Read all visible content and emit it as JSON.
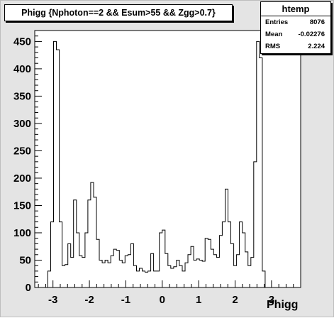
{
  "title": "Phigg {Nphoton==2 && Esum>55 && Zgg>0.7}",
  "stats": {
    "name": "htemp",
    "rows": [
      {
        "label": "Entries",
        "value": "8076"
      },
      {
        "label": "Mean",
        "value": "-0.02276"
      },
      {
        "label": "RMS",
        "value": "2.224"
      }
    ]
  },
  "chart_data": {
    "type": "bar",
    "histogram": true,
    "title": "Phigg {Nphoton==2 && Esum>55 && Zgg>0.7}",
    "xlabel": "Phigg",
    "ylabel": "",
    "xlim": [
      -3.5,
      3.8
    ],
    "ylim": [
      0,
      470
    ],
    "grid": false,
    "bin_width": 0.0785,
    "x_start": -3.141,
    "x_ticks": [
      -3,
      -2,
      -1,
      0,
      1,
      2,
      3
    ],
    "y_ticks": [
      0,
      50,
      100,
      150,
      200,
      250,
      300,
      350,
      400,
      450
    ],
    "values": [
      30,
      120,
      450,
      435,
      120,
      40,
      42,
      80,
      55,
      160,
      100,
      58,
      55,
      100,
      160,
      192,
      165,
      88,
      50,
      45,
      50,
      45,
      58,
      70,
      68,
      50,
      45,
      58,
      60,
      80,
      40,
      30,
      35,
      30,
      28,
      30,
      62,
      30,
      30,
      100,
      105,
      62,
      40,
      35,
      38,
      50,
      40,
      30,
      45,
      60,
      75,
      50,
      52,
      50,
      48,
      90,
      88,
      70,
      60,
      55,
      95,
      120,
      180,
      120,
      80,
      40,
      60,
      120,
      100,
      65,
      40,
      55,
      230,
      450,
      420,
      30
    ],
    "stats": {
      "name": "htemp",
      "entries": 8076,
      "mean": -0.02276,
      "rms": 2.224
    }
  }
}
